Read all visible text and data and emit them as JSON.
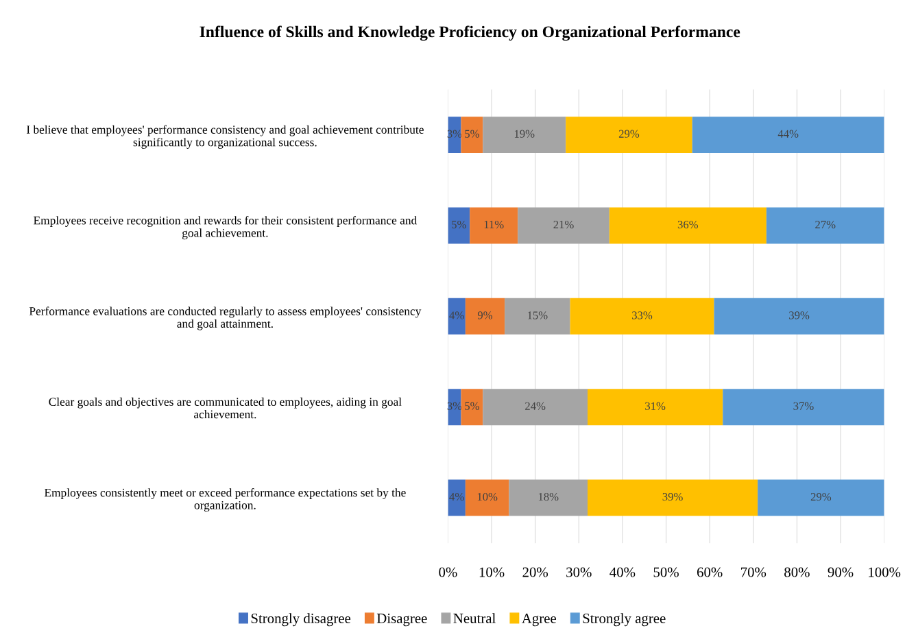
{
  "chart_data": {
    "type": "bar",
    "orientation": "horizontal",
    "stacked": true,
    "title": "Influence of Skills and Knowledge Proficiency on Organizational Performance",
    "categories": [
      "I believe that employees' performance consistency and goal achievement contribute\nsignificantly to organizational success.",
      "Employees receive recognition and rewards for their consistent performance and\ngoal achievement.",
      "Performance evaluations are conducted regularly to assess employees' consistency\nand goal attainment.",
      "Clear goals and objectives are communicated to employees, aiding in goal\nachievement.",
      "Employees consistently meet or exceed performance expectations set by the\norganization."
    ],
    "series": [
      {
        "name": "Strongly disagree",
        "color": "#4472c4",
        "values": [
          3,
          5,
          4,
          3,
          4
        ],
        "value_labels": [
          "3%",
          "5%",
          "4%",
          "3%",
          "4%"
        ]
      },
      {
        "name": "Disagree",
        "color": "#ed7d31",
        "values": [
          5,
          11,
          9,
          5,
          10
        ],
        "value_labels": [
          "5%",
          "11%",
          "9%",
          "5%",
          "10%"
        ]
      },
      {
        "name": "Neutral",
        "color": "#a5a5a5",
        "values": [
          19,
          21,
          15,
          24,
          18
        ],
        "value_labels": [
          "19%",
          "21%",
          "15%",
          "24%",
          "18%"
        ]
      },
      {
        "name": "Agree",
        "color": "#ffc000",
        "values": [
          29,
          36,
          33,
          31,
          39
        ],
        "value_labels": [
          "29%",
          "36%",
          "33%",
          "31%",
          "39%"
        ]
      },
      {
        "name": "Strongly agree",
        "color": "#5b9bd5",
        "values": [
          44,
          27,
          39,
          37,
          29
        ],
        "value_labels": [
          "44%",
          "27%",
          "39%",
          "37%",
          "29%"
        ]
      }
    ],
    "xlim": [
      0,
      100
    ],
    "xticks": [
      {
        "value": 0,
        "label": "0%"
      },
      {
        "value": 10,
        "label": "10%"
      },
      {
        "value": 20,
        "label": "20%"
      },
      {
        "value": 30,
        "label": "30%"
      },
      {
        "value": 40,
        "label": "40%"
      },
      {
        "value": 50,
        "label": "50%"
      },
      {
        "value": 60,
        "label": "60%"
      },
      {
        "value": 70,
        "label": "70%"
      },
      {
        "value": 80,
        "label": "80%"
      },
      {
        "value": 90,
        "label": "90%"
      },
      {
        "value": 100,
        "label": "100%"
      }
    ],
    "grid": "x",
    "legend": "bottom"
  }
}
